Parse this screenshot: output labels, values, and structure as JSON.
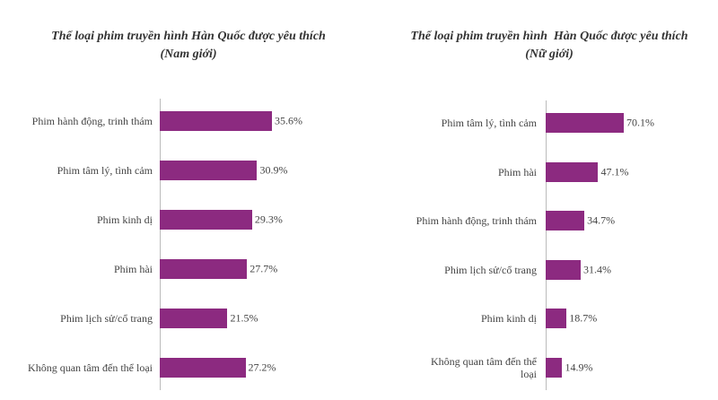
{
  "chart_data": [
    {
      "type": "hbar",
      "title": "Thể loại phim truyền hình Hàn Quốc được yêu thích",
      "subtitle": "(Nam giới)",
      "categories": [
        "Phim hành động, trinh thám",
        "Phim tâm lý, tình cảm",
        "Phim kinh dị",
        "Phim hài",
        "Phim lịch sử/cổ trang",
        "Không quan tâm đến thể loại"
      ],
      "values": [
        35.6,
        30.9,
        29.3,
        27.7,
        21.5,
        27.2
      ],
      "value_labels": [
        "35.6%",
        "30.9%",
        "29.3%",
        "27.7%",
        "21.5%",
        "27.2%"
      ],
      "color": "#8c2a80"
    },
    {
      "type": "hbar",
      "title": "Thể loại phim truyền hình  Hàn Quốc được yêu thích",
      "subtitle": "(Nữ giới)",
      "categories": [
        "Phim tâm lý, tình cảm",
        "Phim hài",
        "Phim hành động, trinh thám",
        "Phim lịch sử/cổ trang",
        "Phim kinh dị",
        "Không quan tâm đến thể loại"
      ],
      "values": [
        70.1,
        47.1,
        34.7,
        31.4,
        18.7,
        14.9
      ],
      "value_labels": [
        "70.1%",
        "47.1%",
        "34.7%",
        "31.4%",
        "18.7%",
        "14.9%"
      ],
      "color": "#8c2a80"
    }
  ]
}
